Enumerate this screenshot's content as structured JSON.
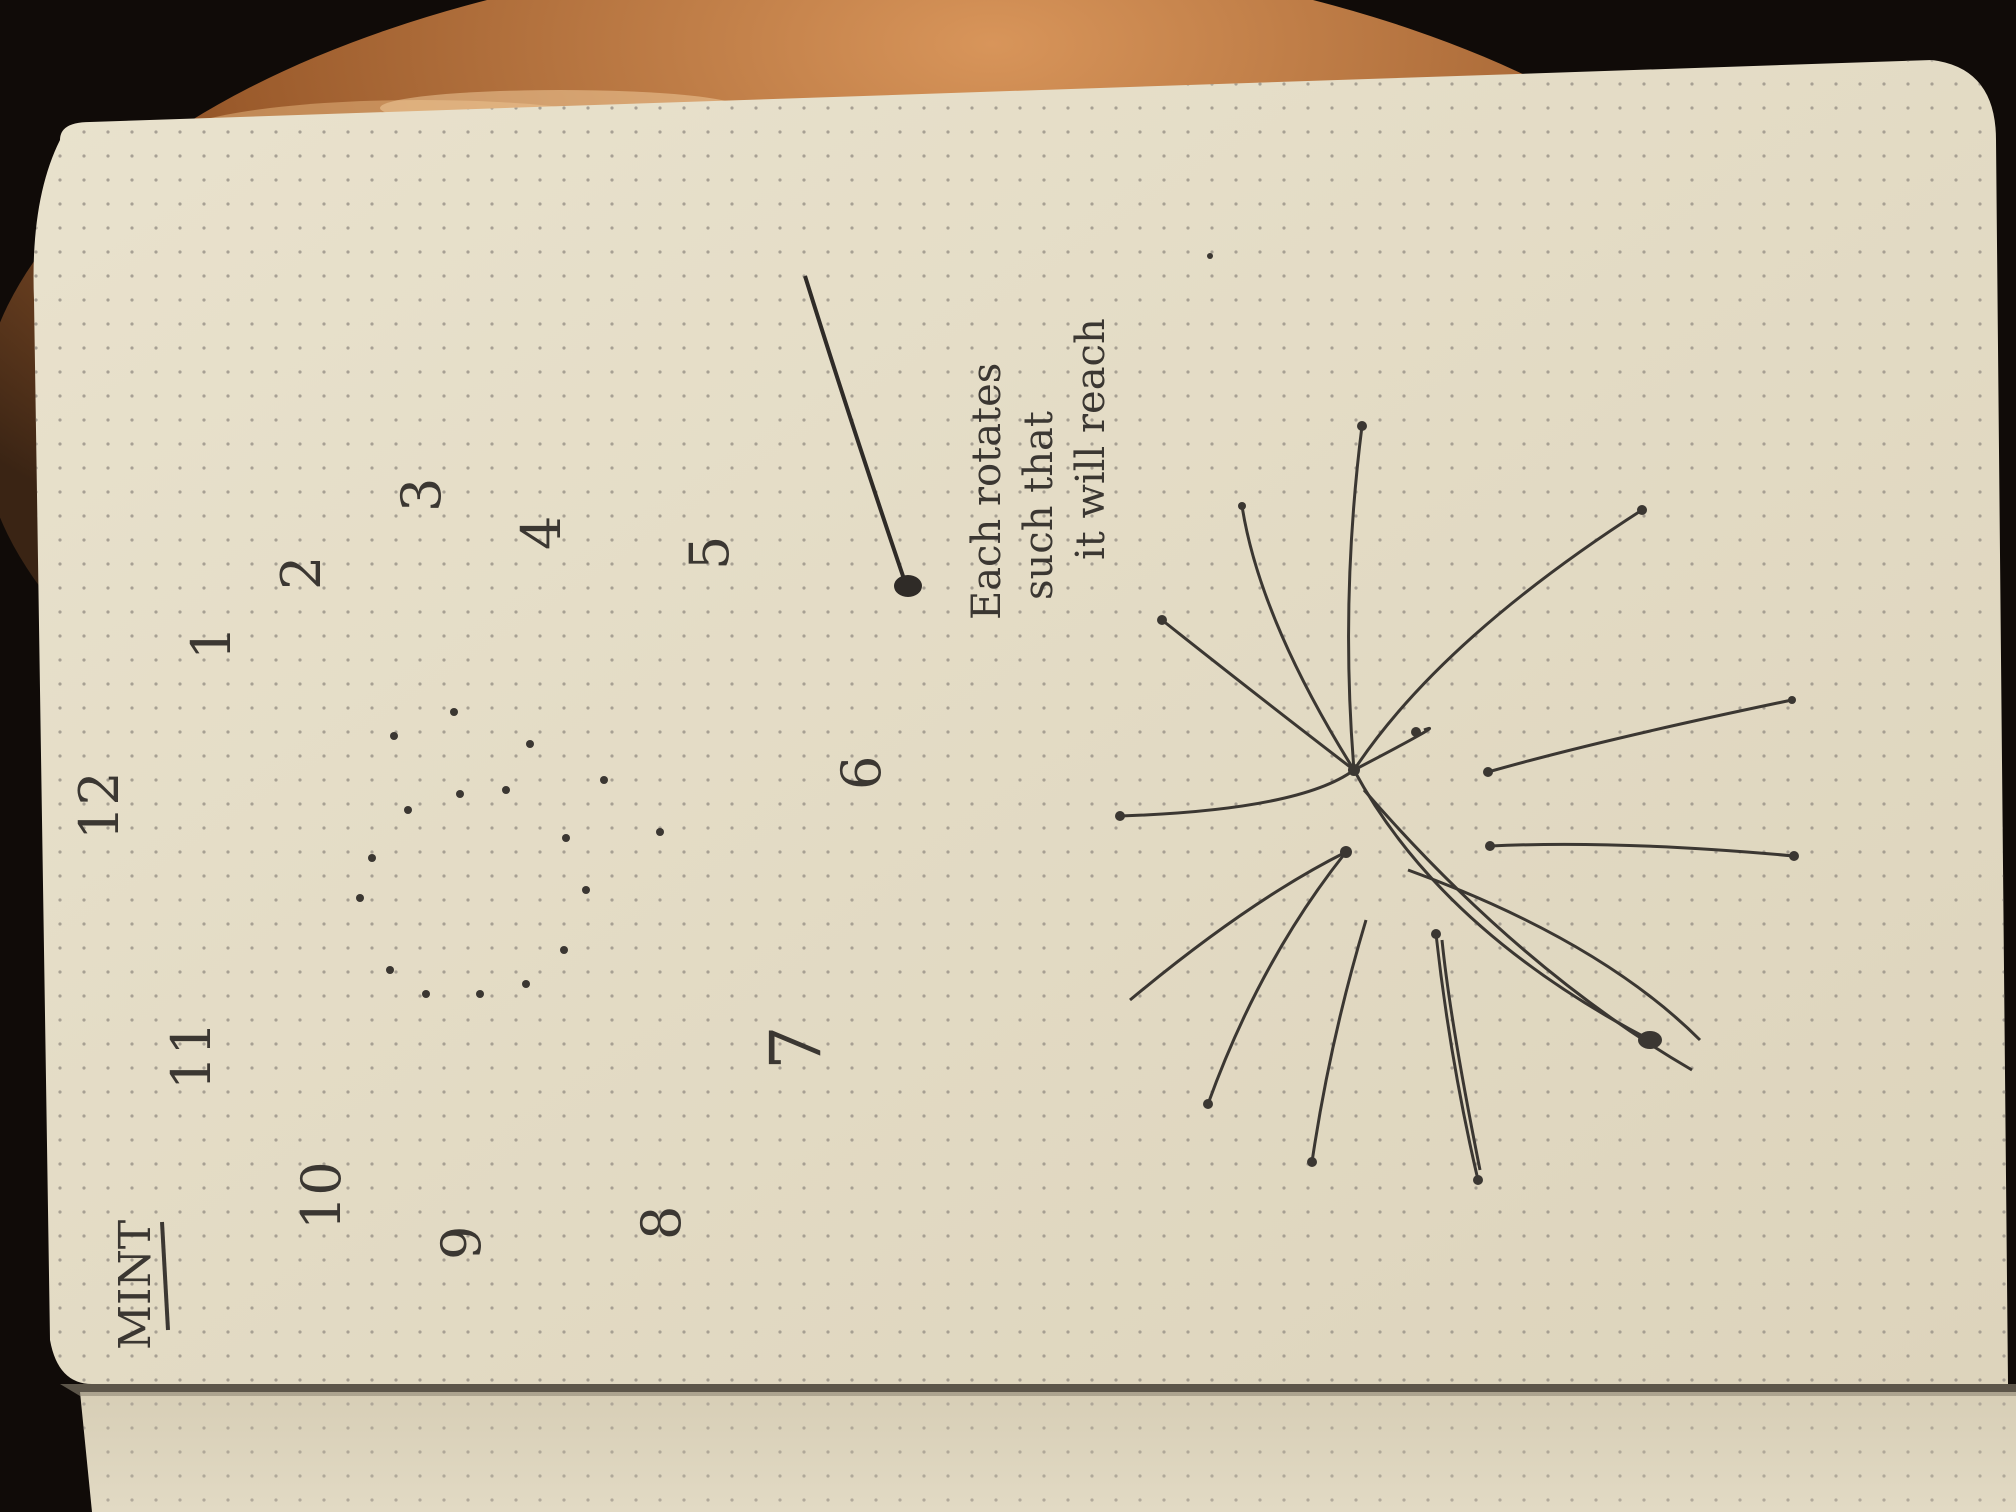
{
  "notebook": {
    "heading": "MINT",
    "clock_numerals": [
      "12",
      "1",
      "2",
      "3",
      "4",
      "5",
      "6",
      "7",
      "8",
      "9",
      "10",
      "11"
    ],
    "note_lines": [
      "Each rotates",
      "such that",
      "it will reach"
    ]
  },
  "colors": {
    "table_wood": "#b9763f",
    "page": "#e7dfc9",
    "page_shadow": "#cfc6ae",
    "ink": "#3b3732",
    "dot_grid": "#9c958a"
  }
}
